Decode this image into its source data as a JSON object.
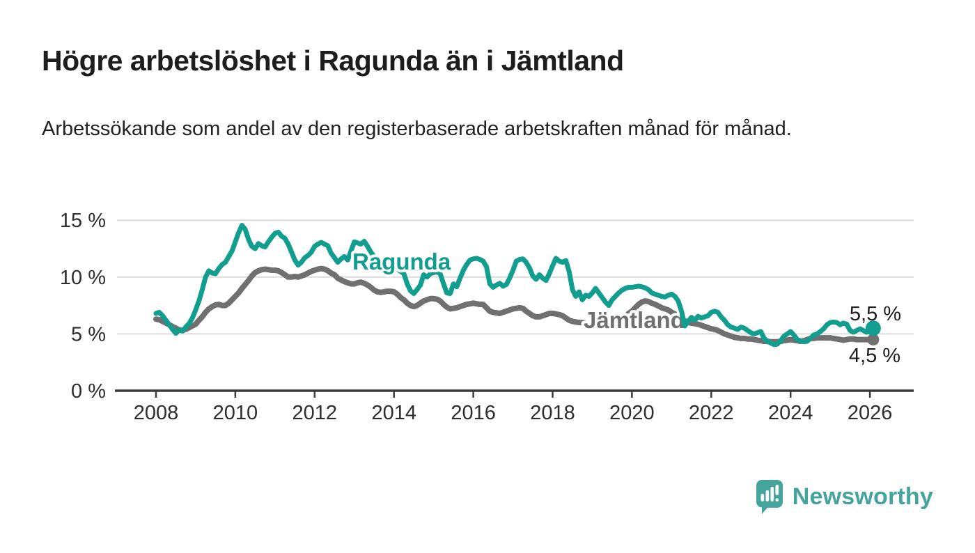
{
  "header": {
    "title": "Högre arbetslöshet i Ragunda än i Jämtland",
    "subtitle": "Arbetssökande som andel av den registerbaserade arbetskraften månad för månad."
  },
  "chart_data": {
    "type": "line",
    "title": "Högre arbetslöshet i Ragunda än i Jämtland",
    "xlabel": "",
    "ylabel": "Arbetssökande som andel av den registerbaserade arbetskraften",
    "x_start_year": 2008,
    "x_step_months": 1,
    "x_tick_years": [
      2008,
      2010,
      2012,
      2014,
      2016,
      2018,
      2020,
      2022,
      2024,
      2026
    ],
    "y_ticks": [
      {
        "value": 0,
        "label": "0 %"
      },
      {
        "value": 5,
        "label": "5 %"
      },
      {
        "value": 10,
        "label": "10 %"
      },
      {
        "value": 15,
        "label": "15 %"
      }
    ],
    "ylim": [
      0,
      16
    ],
    "grid": true,
    "legend_position": "inline-labels",
    "series": [
      {
        "name": "Ragunda",
        "color": "#129E8F",
        "end_label": "5,5 %",
        "end_value": 5.5,
        "values": [
          6.8,
          6.9,
          6.6,
          6.2,
          5.8,
          5.4,
          5.05,
          5.35,
          5.25,
          5.6,
          5.9,
          6.4,
          7.1,
          7.9,
          8.9,
          10.0,
          10.55,
          10.35,
          10.3,
          10.75,
          11.1,
          11.3,
          11.8,
          12.3,
          13.1,
          13.9,
          14.55,
          14.2,
          13.3,
          12.7,
          12.5,
          12.95,
          12.75,
          12.65,
          13.1,
          13.5,
          13.85,
          13.95,
          13.6,
          13.4,
          12.9,
          12.2,
          11.5,
          11.05,
          11.3,
          11.7,
          11.9,
          12.2,
          12.7,
          12.9,
          13.05,
          12.9,
          12.75,
          12.1,
          11.7,
          11.3,
          11.6,
          11.8,
          11.5,
          12.3,
          13.1,
          13.0,
          12.9,
          13.15,
          12.7,
          12.2,
          11.8,
          11.4,
          11.2,
          11.0,
          10.9,
          10.85,
          10.8,
          10.7,
          10.5,
          10.3,
          9.4,
          8.8,
          8.55,
          8.9,
          9.3,
          10.2,
          10.0,
          10.3,
          10.4,
          10.45,
          10.3,
          9.4,
          8.6,
          8.55,
          9.4,
          9.15,
          9.9,
          10.6,
          11.1,
          11.5,
          11.6,
          11.65,
          11.55,
          11.4,
          10.9,
          9.4,
          9.1,
          9.3,
          9.45,
          9.2,
          9.35,
          9.9,
          10.6,
          11.4,
          11.55,
          11.6,
          11.3,
          10.8,
          10.1,
          9.8,
          10.2,
          9.9,
          9.7,
          10.3,
          11.0,
          11.65,
          11.4,
          11.3,
          11.45,
          10.5,
          8.9,
          8.3,
          8.7,
          8.0,
          8.4,
          8.3,
          8.6,
          9.0,
          8.6,
          8.2,
          7.8,
          7.5,
          8.0,
          8.3,
          8.6,
          8.85,
          9.0,
          9.1,
          9.1,
          9.15,
          9.2,
          9.15,
          9.05,
          8.9,
          8.6,
          8.5,
          8.4,
          8.3,
          8.25,
          8.4,
          8.5,
          8.3,
          7.9,
          7.0,
          5.7,
          6.1,
          6.45,
          6.2,
          6.55,
          6.4,
          6.5,
          6.6,
          6.9,
          7.0,
          6.9,
          6.5,
          6.2,
          5.8,
          5.6,
          5.5,
          5.4,
          5.6,
          5.5,
          5.3,
          5.1,
          5.0,
          5.1,
          5.2,
          4.6,
          4.35,
          4.2,
          4.05,
          4.1,
          4.4,
          4.8,
          5.0,
          5.2,
          4.9,
          4.5,
          4.4,
          4.3,
          4.35,
          4.6,
          4.9,
          5.0,
          5.2,
          5.45,
          5.8,
          6.0,
          6.05,
          6.0,
          5.8,
          5.95,
          5.85,
          5.3,
          5.15,
          5.3,
          5.45,
          5.3,
          5.15,
          5.35,
          5.5
        ]
      },
      {
        "name": "Jämtland",
        "color": "#707070",
        "end_label": "4,5 %",
        "end_value": 4.5,
        "values": [
          6.3,
          6.25,
          6.1,
          5.95,
          5.8,
          5.65,
          5.5,
          5.35,
          5.3,
          5.4,
          5.55,
          5.7,
          5.85,
          6.2,
          6.5,
          6.9,
          7.2,
          7.4,
          7.55,
          7.6,
          7.5,
          7.5,
          7.7,
          8.0,
          8.3,
          8.6,
          9.0,
          9.35,
          9.7,
          10.1,
          10.4,
          10.55,
          10.65,
          10.7,
          10.65,
          10.6,
          10.6,
          10.55,
          10.4,
          10.2,
          10.0,
          10.0,
          10.05,
          10.0,
          10.1,
          10.2,
          10.35,
          10.5,
          10.6,
          10.7,
          10.75,
          10.7,
          10.55,
          10.35,
          10.2,
          9.9,
          9.75,
          9.6,
          9.5,
          9.4,
          9.4,
          9.5,
          9.55,
          9.45,
          9.3,
          9.1,
          8.85,
          8.7,
          8.65,
          8.7,
          8.75,
          8.75,
          8.7,
          8.5,
          8.2,
          8.0,
          7.7,
          7.5,
          7.4,
          7.5,
          7.7,
          7.9,
          8.0,
          8.1,
          8.1,
          8.05,
          7.9,
          7.6,
          7.35,
          7.2,
          7.25,
          7.3,
          7.4,
          7.5,
          7.6,
          7.65,
          7.7,
          7.65,
          7.6,
          7.6,
          7.3,
          7.0,
          6.9,
          6.85,
          6.8,
          6.9,
          7.0,
          7.1,
          7.2,
          7.25,
          7.3,
          7.25,
          7.0,
          6.8,
          6.6,
          6.5,
          6.5,
          6.6,
          6.7,
          6.8,
          6.8,
          6.75,
          6.7,
          6.6,
          6.4,
          6.2,
          6.1,
          6.05,
          6.0,
          6.0,
          5.95,
          5.9,
          5.9,
          5.85,
          5.8,
          5.75,
          5.75,
          5.8,
          5.9,
          6.0,
          6.1,
          6.3,
          6.5,
          6.8,
          7.0,
          7.3,
          7.6,
          7.8,
          7.9,
          7.85,
          7.7,
          7.6,
          7.45,
          7.3,
          7.2,
          7.1,
          6.9,
          6.75,
          6.5,
          6.3,
          6.15,
          6.0,
          5.95,
          5.9,
          5.85,
          5.75,
          5.65,
          5.55,
          5.45,
          5.4,
          5.3,
          5.15,
          5.0,
          4.9,
          4.8,
          4.7,
          4.65,
          4.6,
          4.6,
          4.55,
          4.55,
          4.5,
          4.45,
          4.4,
          4.35,
          4.35,
          4.3,
          4.3,
          4.3,
          4.35,
          4.4,
          4.45,
          4.5,
          4.45,
          4.4,
          4.35,
          4.4,
          4.5,
          4.6,
          4.6,
          4.65,
          4.65,
          4.65,
          4.65,
          4.65,
          4.6,
          4.55,
          4.5,
          4.45,
          4.5,
          4.55,
          4.55,
          4.5,
          4.5,
          4.5,
          4.5,
          4.5,
          4.5
        ]
      }
    ]
  },
  "colors": {
    "accent_teal": "#129E8F",
    "line_gray": "#707070",
    "grid": "#DBDBDB",
    "axis": "#3A3A3A",
    "text": "#1D1D1D",
    "logo_teal": "#45A49C",
    "background": "#FFFFFF"
  },
  "footer": {
    "brand": "Newsworthy"
  }
}
